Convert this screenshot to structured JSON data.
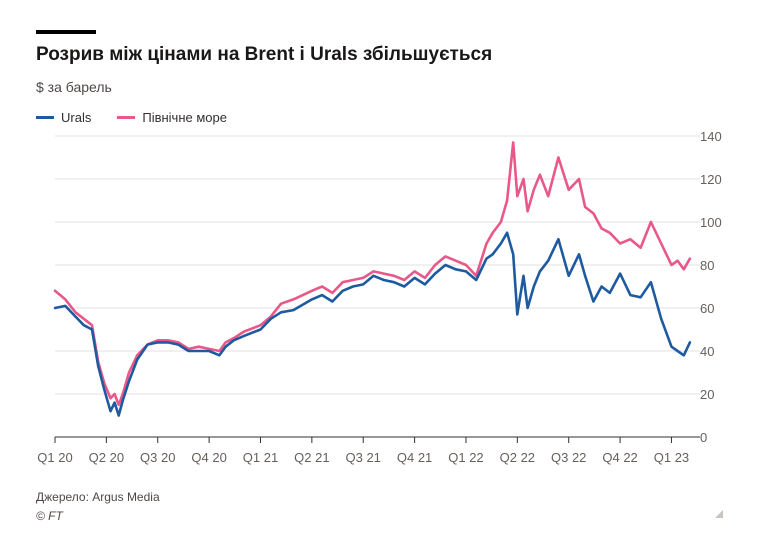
{
  "title": "Розрив між цінами на Brent і Urals збільшується",
  "subtitle": "$ за барель",
  "source": "Джерело: Argus Media",
  "copyright": "© FT",
  "colors": {
    "urals": "#1e5aa0",
    "north_sea": "#e8588a",
    "grid": "#e6e2de",
    "axis": "#33302e"
  },
  "chart_data": {
    "type": "line",
    "xlabel": "",
    "ylabel": "",
    "ylim": [
      0,
      140
    ],
    "y_ticks": [
      "0",
      "20",
      "40",
      "60",
      "80",
      "100",
      "120",
      "140"
    ],
    "x_ticks": [
      "Q1 20",
      "Q2 20",
      "Q3 20",
      "Q4 20",
      "Q1 21",
      "Q2 21",
      "Q3 21",
      "Q4 21",
      "Q1 22",
      "Q2 22",
      "Q3 22",
      "Q4 22",
      "Q1 23"
    ],
    "grid": true,
    "legend_position": "top-left",
    "series": [
      {
        "name": "Urals",
        "x": [
          2020.0,
          2020.05,
          2020.1,
          2020.14,
          2020.18,
          2020.21,
          2020.24,
          2020.27,
          2020.29,
          2020.31,
          2020.33,
          2020.36,
          2020.4,
          2020.45,
          2020.5,
          2020.55,
          2020.6,
          2020.65,
          2020.7,
          2020.75,
          2020.8,
          2020.83,
          2020.87,
          2020.92,
          2021.0,
          2021.05,
          2021.1,
          2021.16,
          2021.25,
          2021.3,
          2021.35,
          2021.4,
          2021.45,
          2021.5,
          2021.55,
          2021.6,
          2021.65,
          2021.7,
          2021.75,
          2021.8,
          2021.85,
          2021.9,
          2021.95,
          2022.0,
          2022.05,
          2022.1,
          2022.13,
          2022.17,
          2022.2,
          2022.23,
          2022.25,
          2022.28,
          2022.3,
          2022.33,
          2022.36,
          2022.4,
          2022.45,
          2022.5,
          2022.55,
          2022.58,
          2022.62,
          2022.66,
          2022.7,
          2022.75,
          2022.8,
          2022.85,
          2022.9,
          2022.95,
          2023.0,
          2023.03,
          2023.06,
          2023.09
        ],
        "values": [
          60,
          61,
          56,
          52,
          50,
          33,
          22,
          12,
          16,
          10,
          17,
          26,
          36,
          43,
          44,
          44,
          43,
          40,
          40,
          40,
          38,
          42,
          45,
          47,
          50,
          55,
          58,
          59,
          64,
          66,
          63,
          68,
          70,
          71,
          75,
          73,
          72,
          70,
          74,
          71,
          76,
          80,
          78,
          77,
          73,
          83,
          85,
          90,
          95,
          85,
          57,
          75,
          60,
          70,
          77,
          82,
          92,
          75,
          85,
          75,
          63,
          70,
          67,
          76,
          66,
          65,
          72,
          55,
          42,
          40,
          38,
          44
        ]
      },
      {
        "name": "Північне море",
        "x": [
          2020.0,
          2020.05,
          2020.1,
          2020.14,
          2020.18,
          2020.21,
          2020.24,
          2020.27,
          2020.29,
          2020.31,
          2020.33,
          2020.36,
          2020.4,
          2020.45,
          2020.5,
          2020.55,
          2020.6,
          2020.65,
          2020.7,
          2020.75,
          2020.8,
          2020.83,
          2020.87,
          2020.92,
          2021.0,
          2021.05,
          2021.1,
          2021.16,
          2021.25,
          2021.3,
          2021.35,
          2021.4,
          2021.45,
          2021.5,
          2021.55,
          2021.6,
          2021.65,
          2021.7,
          2021.75,
          2021.8,
          2021.85,
          2021.9,
          2021.95,
          2022.0,
          2022.05,
          2022.1,
          2022.13,
          2022.17,
          2022.2,
          2022.23,
          2022.25,
          2022.28,
          2022.3,
          2022.33,
          2022.36,
          2022.4,
          2022.45,
          2022.5,
          2022.55,
          2022.58,
          2022.62,
          2022.66,
          2022.7,
          2022.75,
          2022.8,
          2022.85,
          2022.9,
          2022.95,
          2023.0,
          2023.03,
          2023.06,
          2023.09
        ],
        "values": [
          68,
          64,
          58,
          55,
          52,
          35,
          25,
          18,
          20,
          15,
          20,
          30,
          38,
          43,
          45,
          45,
          44,
          41,
          42,
          41,
          40,
          44,
          46,
          49,
          52,
          56,
          62,
          64,
          68,
          70,
          67,
          72,
          73,
          74,
          77,
          76,
          75,
          73,
          77,
          74,
          80,
          84,
          82,
          80,
          75,
          90,
          95,
          100,
          110,
          137,
          112,
          120,
          105,
          115,
          122,
          112,
          130,
          115,
          120,
          107,
          104,
          97,
          95,
          90,
          92,
          88,
          100,
          90,
          80,
          82,
          78,
          83
        ]
      }
    ]
  }
}
